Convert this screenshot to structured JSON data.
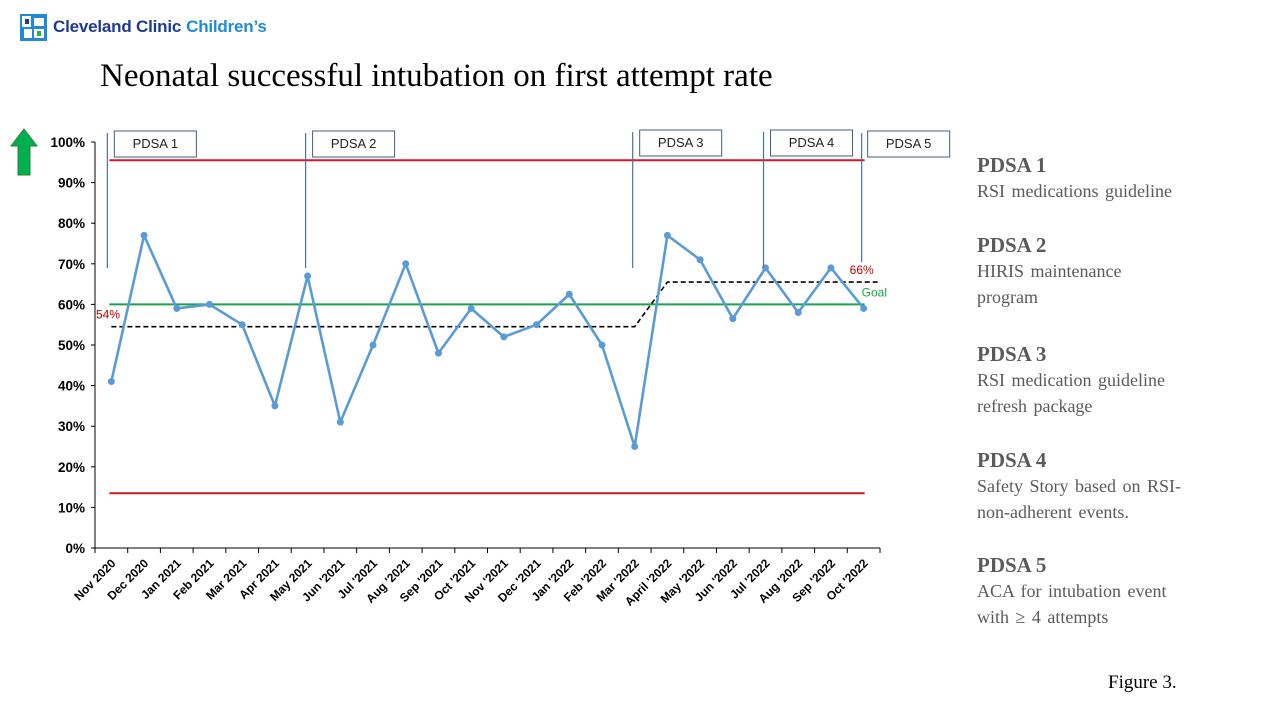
{
  "header": {
    "logo_text_1": "Cleveland Clinic",
    "logo_text_2": "Children’s",
    "title": "Neonatal successful intubation on first attempt rate"
  },
  "icons": {
    "logo": "cleveland-clinic-logo",
    "arrow": "up-arrow-icon"
  },
  "colors": {
    "series": "#5b9bd5",
    "control_limits": "#d0181e",
    "goal": "#16a34a",
    "median": "#000000",
    "annotation_red": "#c00000",
    "arrow_green": "#00b050"
  },
  "chart_data": {
    "type": "line",
    "categories": [
      "Nov 2020",
      "Dec 2020",
      "Jan 2021",
      "Feb 2021",
      "Mar 2021",
      "Apr 2021",
      "May 2021",
      "Jun '2021",
      "Jul '2021",
      "Aug '2021",
      "Sep '2021",
      "Oct '2021",
      "Nov '2021",
      "Dec '2021",
      "Jan '2022",
      "Feb '2022",
      "Mar '2022",
      "April '2022",
      "May '2022",
      "Jun '2022",
      "Jul '2022",
      "Aug '2022",
      "Sep '2022",
      "Oct '2022"
    ],
    "series": [
      {
        "values": [
          41,
          77,
          59,
          60,
          55,
          35,
          67,
          31,
          50,
          70,
          48,
          59,
          52,
          55,
          62.5,
          50,
          25,
          77,
          71,
          56.5,
          69,
          58,
          69,
          59
        ]
      }
    ],
    "upper_limit": 95.5,
    "lower_limit": 13.5,
    "goal": 60,
    "median_segments": [
      {
        "from": 0,
        "to": 16,
        "value": 54.5
      },
      {
        "from": 17,
        "to": 23,
        "value": 65.5
      }
    ],
    "ylim": [
      0,
      100
    ],
    "yticks": [
      "0%",
      "10%",
      "20%",
      "30%",
      "40%",
      "50%",
      "60%",
      "70%",
      "80%",
      "90%",
      "100%"
    ],
    "annotations": {
      "median_start": "54%",
      "median_end": "66%",
      "goal": "Goal"
    },
    "pdsa_markers": [
      {
        "label": "PDSA 1",
        "index": 0
      },
      {
        "label": "PDSA 2",
        "index": 6
      },
      {
        "label": "PDSA 3",
        "index": 16
      },
      {
        "label": "PDSA 4",
        "index": 20
      },
      {
        "label": "PDSA 5",
        "index": 23
      }
    ]
  },
  "pdsa_list": [
    {
      "title": "PDSA 1",
      "lines": [
        "RSI medications guideline"
      ]
    },
    {
      "title": "PDSA 2",
      "lines": [
        "HIRIS maintenance",
        "program"
      ]
    },
    {
      "title": "PDSA 3",
      "lines": [
        "RSI medication guideline",
        "refresh package"
      ]
    },
    {
      "title": "PDSA 4",
      "lines": [
        "Safety Story based on RSI-",
        "non-adherent events."
      ]
    },
    {
      "title": "PDSA 5",
      "lines": [
        "ACA for intubation event",
        "with ≥ 4 attempts"
      ]
    }
  ],
  "figure_caption": "Figure 3."
}
